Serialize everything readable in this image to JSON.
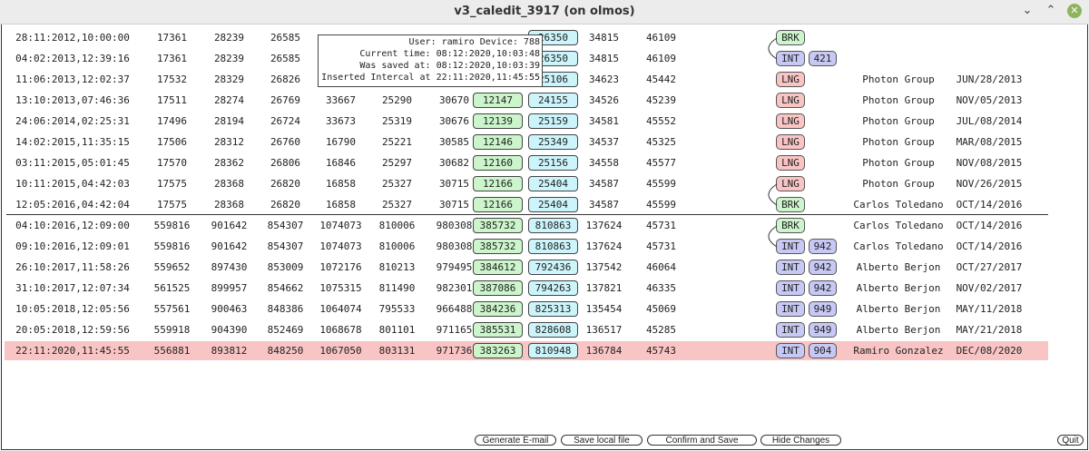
{
  "window": {
    "title": "v3_caledit_3917 (on olmos)"
  },
  "tooltip": {
    "user_device": "User: ramiro Device: 788",
    "current_time": "Current time: 08:12:2020,10:03:48",
    "saved_at": "Was saved at: 08:12:2020,10:03:39",
    "inserted": "Inserted Intercal at 22:11:2020,11:45:55"
  },
  "rows": [
    {
      "date": "28:11:2012,10:00:00",
      "v1": "17361",
      "v2": "28239",
      "v3": "26585",
      "v4": "",
      "v5": "",
      "v6": "",
      "g": "",
      "b": "26350",
      "v9": "34815",
      "v10": "46109",
      "kind": "BRK",
      "num": "",
      "name": "",
      "when": ""
    },
    {
      "date": "04:02:2013,12:39:16",
      "v1": "17361",
      "v2": "28239",
      "v3": "26585",
      "v4": "",
      "v5": "",
      "v6": "",
      "g": "",
      "b": "26350",
      "v9": "34815",
      "v10": "46109",
      "kind": "INT",
      "num": "421",
      "name": "",
      "when": ""
    },
    {
      "date": "11:06:2013,12:02:37",
      "v1": "17532",
      "v2": "28329",
      "v3": "26826",
      "v4": "",
      "v5": "",
      "v6": "",
      "g": "",
      "b": "25106",
      "v9": "34623",
      "v10": "45442",
      "kind": "LNG",
      "num": "",
      "name": "Photon Group",
      "when": "JUN/28/2013"
    },
    {
      "date": "13:10:2013,07:46:36",
      "v1": "17511",
      "v2": "28274",
      "v3": "26769",
      "v4": "33667",
      "v5": "25290",
      "v6": "30670",
      "g": "12147",
      "b": "24155",
      "v9": "34526",
      "v10": "45239",
      "kind": "LNG",
      "num": "",
      "name": "Photon Group",
      "when": "NOV/05/2013"
    },
    {
      "date": "24:06:2014,02:25:31",
      "v1": "17496",
      "v2": "28194",
      "v3": "26724",
      "v4": "33673",
      "v5": "25319",
      "v6": "30676",
      "g": "12139",
      "b": "25159",
      "v9": "34581",
      "v10": "45552",
      "kind": "LNG",
      "num": "",
      "name": "Photon Group",
      "when": "JUL/08/2014"
    },
    {
      "date": "14:02:2015,11:35:15",
      "v1": "17506",
      "v2": "28312",
      "v3": "26760",
      "v4": "16790",
      "v5": "25221",
      "v6": "30585",
      "g": "12146",
      "b": "25349",
      "v9": "34537",
      "v10": "45325",
      "kind": "LNG",
      "num": "",
      "name": "Photon Group",
      "when": "MAR/08/2015"
    },
    {
      "date": "03:11:2015,05:01:45",
      "v1": "17570",
      "v2": "28362",
      "v3": "26806",
      "v4": "16846",
      "v5": "25297",
      "v6": "30682",
      "g": "12160",
      "b": "25156",
      "v9": "34558",
      "v10": "45577",
      "kind": "LNG",
      "num": "",
      "name": "Photon Group",
      "when": "NOV/08/2015"
    },
    {
      "date": "10:11:2015,04:42:03",
      "v1": "17575",
      "v2": "28368",
      "v3": "26820",
      "v4": "16858",
      "v5": "25327",
      "v6": "30715",
      "g": "12166",
      "b": "25404",
      "v9": "34587",
      "v10": "45599",
      "kind": "LNG",
      "num": "",
      "name": "Photon Group",
      "when": "NOV/26/2015"
    },
    {
      "date": "12:05:2016,04:42:04",
      "v1": "17575",
      "v2": "28368",
      "v3": "26820",
      "v4": "16858",
      "v5": "25327",
      "v6": "30715",
      "g": "12166",
      "b": "25404",
      "v9": "34587",
      "v10": "45599",
      "kind": "BRK",
      "num": "",
      "name": "Carlos Toledano",
      "when": "OCT/14/2016"
    },
    {
      "date": "04:10:2016,12:09:00",
      "v1": "559816",
      "v2": "901642",
      "v3": "854307",
      "v4": "1074073",
      "v5": "810006",
      "v6": "980308",
      "g": "385732",
      "b": "810863",
      "v9": "137624",
      "v10": "45731",
      "kind": "BRK",
      "num": "",
      "name": "Carlos Toledano",
      "when": "OCT/14/2016"
    },
    {
      "date": "09:10:2016,12:09:01",
      "v1": "559816",
      "v2": "901642",
      "v3": "854307",
      "v4": "1074073",
      "v5": "810006",
      "v6": "980308",
      "g": "385732",
      "b": "810863",
      "v9": "137624",
      "v10": "45731",
      "kind": "INT",
      "num": "942",
      "name": "Carlos Toledano",
      "when": "OCT/14/2016"
    },
    {
      "date": "26:10:2017,11:58:26",
      "v1": "559652",
      "v2": "897430",
      "v3": "853009",
      "v4": "1072176",
      "v5": "810213",
      "v6": "979495",
      "g": "384612",
      "b": "792436",
      "v9": "137542",
      "v10": "46064",
      "kind": "INT",
      "num": "942",
      "name": "Alberto Berjon",
      "when": "OCT/27/2017"
    },
    {
      "date": "31:10:2017,12:07:34",
      "v1": "561525",
      "v2": "899957",
      "v3": "854662",
      "v4": "1075315",
      "v5": "811490",
      "v6": "982301",
      "g": "387086",
      "b": "794263",
      "v9": "137821",
      "v10": "46335",
      "kind": "INT",
      "num": "942",
      "name": "Alberto Berjon",
      "when": "NOV/02/2017"
    },
    {
      "date": "10:05:2018,12:05:56",
      "v1": "557561",
      "v2": "900463",
      "v3": "848386",
      "v4": "1064074",
      "v5": "795533",
      "v6": "966488",
      "g": "384236",
      "b": "825313",
      "v9": "135454",
      "v10": "45069",
      "kind": "INT",
      "num": "949",
      "name": "Alberto Berjon",
      "when": "MAY/11/2018"
    },
    {
      "date": "20:05:2018,12:59:56",
      "v1": "559918",
      "v2": "904390",
      "v3": "852469",
      "v4": "1068678",
      "v5": "801101",
      "v6": "971165",
      "g": "385531",
      "b": "828608",
      "v9": "136517",
      "v10": "45285",
      "kind": "INT",
      "num": "949",
      "name": "Alberto Berjon",
      "when": "MAY/21/2018"
    },
    {
      "date": "22:11:2020,11:45:55",
      "v1": "556881",
      "v2": "893812",
      "v3": "848250",
      "v4": "1067050",
      "v5": "803131",
      "v6": "971736",
      "g": "383263",
      "b": "810948",
      "v9": "136784",
      "v10": "45743",
      "kind": "INT",
      "num": "904",
      "name": "Ramiro Gonzalez",
      "when": "DEC/08/2020"
    }
  ],
  "buttons": {
    "email": "Generate E-mail",
    "save_local": "Save local file",
    "confirm": "Confirm and Save",
    "hide": "Hide Changes",
    "quit": "Quit"
  },
  "colors": {
    "highlight_row": "#f9c4c4",
    "brk_tag": "#ccf5cc",
    "int_tag": "#c8c8f5",
    "lng_tag": "#f9c4c4"
  }
}
